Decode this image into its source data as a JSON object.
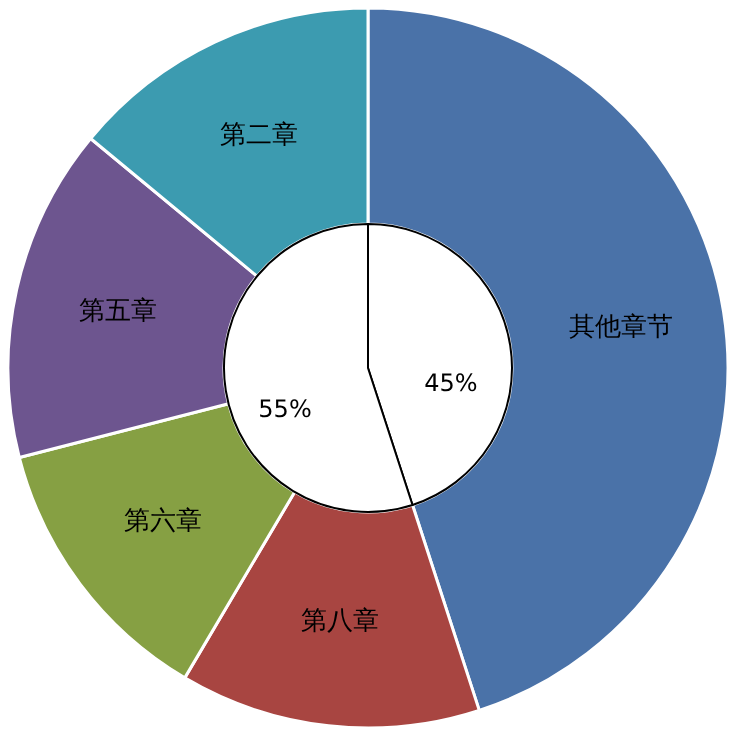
{
  "chart_data": [
    {
      "type": "donut",
      "categories": [
        "其他章节",
        "第八章",
        "第六章",
        "第五章",
        "第二章"
      ],
      "values": [
        45,
        13.5,
        12.5,
        15,
        14
      ],
      "colors": [
        "#4a72a8",
        "#a84541",
        "#86a043",
        "#6d558f",
        "#3c9bb0"
      ]
    },
    {
      "type": "pie",
      "categories": [
        null,
        null
      ],
      "values": [
        45,
        55
      ],
      "colors": [
        "#ffffff",
        "#ffffff"
      ],
      "value_labels": [
        "45%",
        "55%"
      ]
    }
  ]
}
